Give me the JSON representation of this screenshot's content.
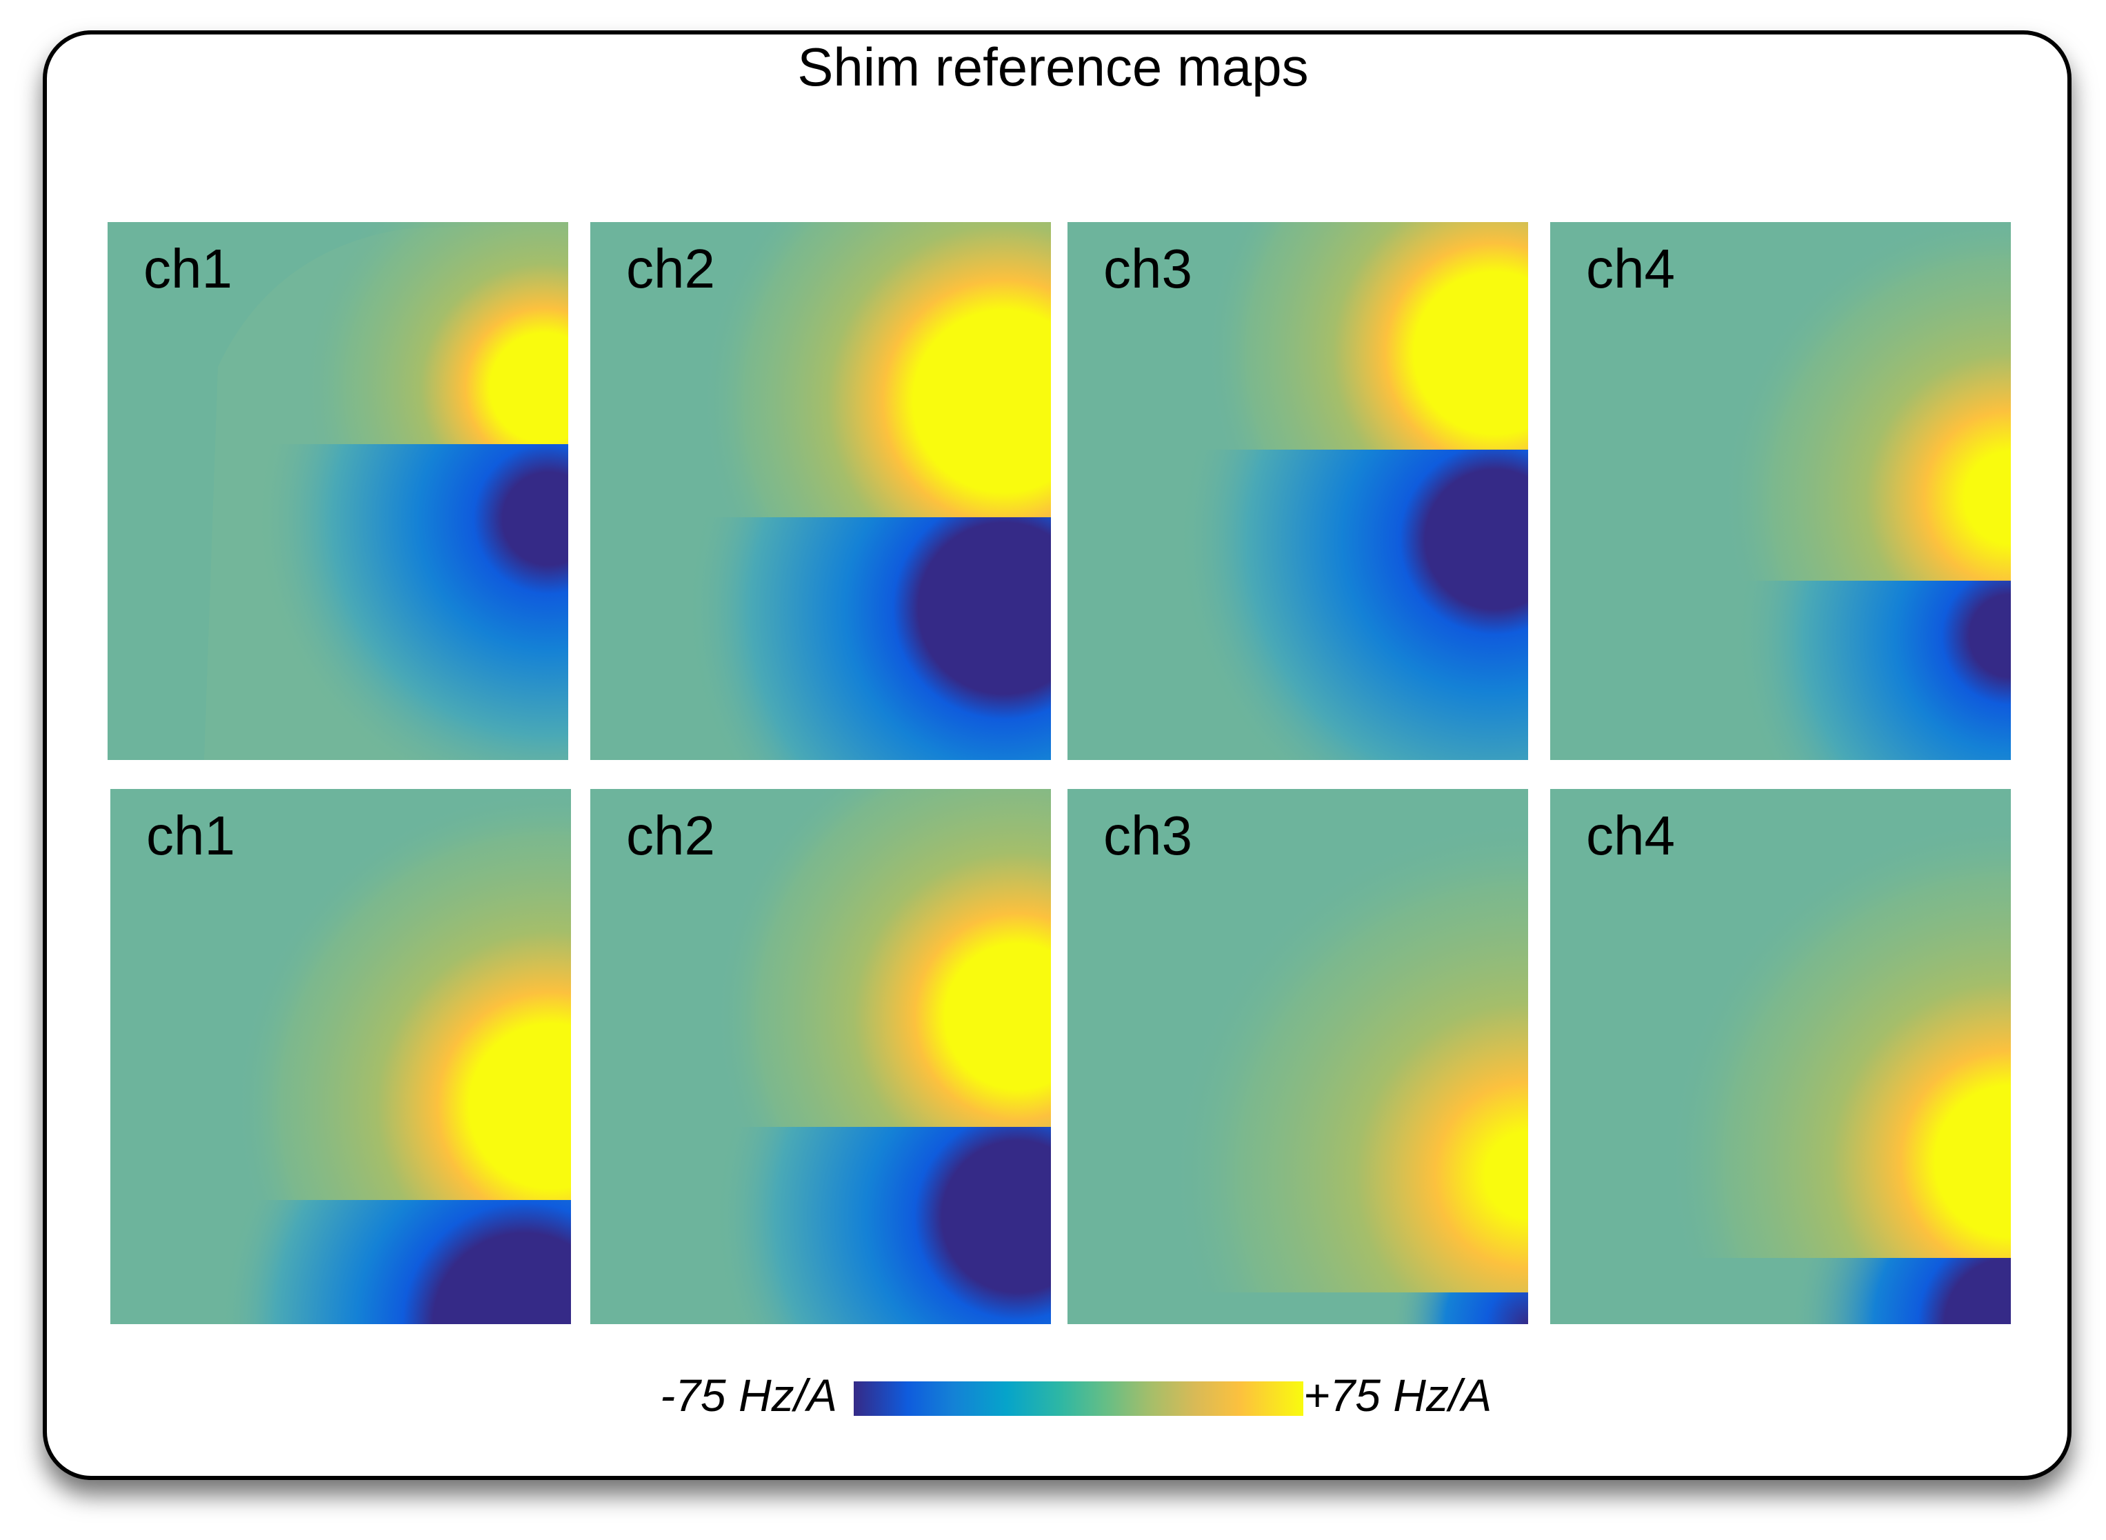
{
  "figure": {
    "title": "Shim reference maps",
    "colorbar": {
      "min_label": "-75 Hz/A",
      "max_label": "+75 Hz/A",
      "min": -75,
      "max": 75,
      "unit": "Hz/A",
      "colormap": "parula"
    },
    "colors": {
      "background_map": "#6db49c",
      "high": "#f9fb0e",
      "low": "#352a87"
    },
    "panels": [
      {
        "row": 1,
        "label": "ch1",
        "positive_lobe": "upper-right",
        "negative_lobe": "mid-right"
      },
      {
        "row": 1,
        "label": "ch2",
        "positive_lobe": "upper-right",
        "negative_lobe": "mid-right"
      },
      {
        "row": 1,
        "label": "ch3",
        "positive_lobe": "upper-right",
        "negative_lobe": "mid-right"
      },
      {
        "row": 1,
        "label": "ch4",
        "positive_lobe": "mid-right",
        "negative_lobe": "lower-right"
      },
      {
        "row": 2,
        "label": "ch1",
        "positive_lobe": "mid-right",
        "negative_lobe": "lower-right"
      },
      {
        "row": 2,
        "label": "ch2",
        "positive_lobe": "mid-right",
        "negative_lobe": "lower-right"
      },
      {
        "row": 2,
        "label": "ch3",
        "positive_lobe": "lower-right",
        "negative_lobe": "bottom-right corner"
      },
      {
        "row": 2,
        "label": "ch4",
        "positive_lobe": "lower-right",
        "negative_lobe": "bottom-right corner"
      }
    ]
  }
}
